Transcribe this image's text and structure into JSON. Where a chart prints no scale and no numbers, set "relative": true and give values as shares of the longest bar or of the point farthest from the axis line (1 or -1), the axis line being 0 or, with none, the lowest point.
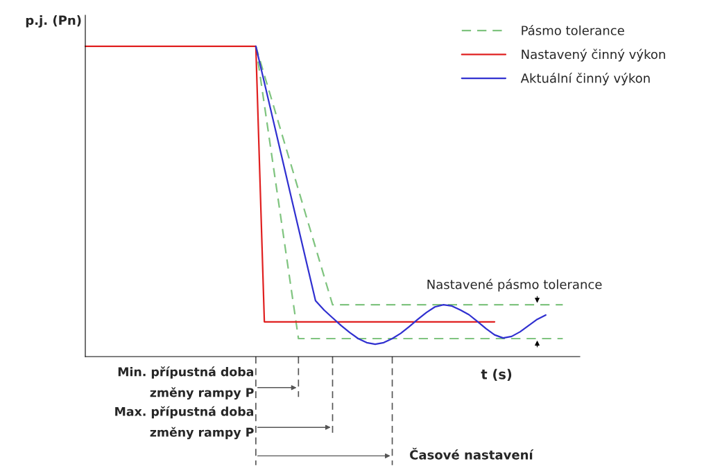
{
  "chart_data": {
    "type": "line",
    "relative": true,
    "xlabel": "t (s)",
    "ylabel": "p.j. (Pn)",
    "categories": [
      null,
      null,
      null,
      null,
      null,
      null,
      null,
      null,
      null,
      null,
      null,
      null,
      null,
      null,
      null,
      null,
      null,
      null,
      null,
      null,
      null,
      null,
      null,
      null,
      null,
      null,
      null,
      null,
      null,
      null,
      null,
      null,
      null,
      null,
      null,
      null,
      null,
      null,
      null,
      null,
      null,
      null,
      null,
      null,
      null,
      null,
      null,
      null,
      null,
      null,
      null,
      null,
      null,
      null,
      null,
      null,
      null,
      null,
      null
    ],
    "legend": "top right",
    "series": [
      {
        "name": "Pásmo tolerance",
        "color": "#7fc47f",
        "line_style": "dashed",
        "values": [
          null,
          null,
          null,
          null,
          null,
          null,
          null,
          null,
          null,
          null,
          null,
          null,
          null,
          null,
          null,
          null,
          null,
          null,
          null,
          null,
          1,
          0.907,
          0.815,
          0.722,
          0.63,
          0.537,
          0.444,
          0.352,
          0.259,
          0.167,
          0.167,
          0.167,
          0.167,
          0.167,
          0.167,
          0.167,
          0.167,
          0.167,
          0.167,
          0.167,
          0.167,
          0.167,
          0.167,
          0.167,
          0.167,
          0.167,
          0.167,
          0.167,
          0.167,
          0.167,
          0.167,
          0.167,
          0.167,
          0.167,
          0.167,
          0.167,
          0.167,
          null,
          null
        ]
      },
      {
        "color": "#7fc47f",
        "line_style": "dashed",
        "values": [
          null,
          null,
          null,
          null,
          null,
          null,
          null,
          null,
          null,
          null,
          null,
          null,
          null,
          null,
          null,
          null,
          null,
          null,
          null,
          null,
          1,
          0.812,
          0.623,
          0.435,
          0.246,
          0.058,
          0.058,
          0.058,
          0.058,
          0.058,
          0.058,
          0.058,
          0.058,
          0.058,
          0.058,
          0.058,
          0.058,
          0.058,
          0.058,
          0.058,
          0.058,
          0.058,
          0.058,
          0.058,
          0.058,
          0.058,
          0.058,
          0.058,
          0.058,
          0.058,
          0.058,
          0.058,
          0.058,
          0.058,
          0.058,
          0.058,
          0.058,
          null,
          null
        ]
      },
      {
        "name": "Nastavený činný výkon",
        "color": "#e02020",
        "line_style": "solid",
        "values": [
          1,
          1,
          1,
          1,
          1,
          1,
          1,
          1,
          1,
          1,
          1,
          1,
          1,
          1,
          1,
          1,
          1,
          1,
          1,
          1,
          1,
          0.112,
          0.112,
          0.112,
          0.112,
          0.112,
          0.112,
          0.112,
          0.112,
          0.112,
          0.112,
          0.112,
          0.112,
          0.112,
          0.112,
          0.112,
          0.112,
          0.112,
          0.112,
          0.112,
          0.112,
          0.112,
          0.112,
          0.112,
          0.112,
          0.112,
          0.112,
          0.112,
          0.112,
          null,
          null,
          null,
          null,
          null,
          null,
          null,
          null,
          null,
          null
        ]
      },
      {
        "name": "Aktuální činný výkon",
        "color": "#3030d0",
        "line_style": "solid",
        "values": [
          null,
          null,
          null,
          null,
          null,
          null,
          null,
          null,
          null,
          null,
          null,
          null,
          null,
          null,
          null,
          null,
          null,
          null,
          null,
          null,
          1,
          0.883,
          0.766,
          0.649,
          0.531,
          0.414,
          0.297,
          0.18,
          0.15,
          0.125,
          0.1,
          0.078,
          0.058,
          0.045,
          0.04,
          0.045,
          0.058,
          0.075,
          0.097,
          0.12,
          0.142,
          0.16,
          0.167,
          0.163,
          0.15,
          0.135,
          0.113,
          0.09,
          0.07,
          0.06,
          0.065,
          0.08,
          0.1,
          0.12,
          0.134,
          null,
          null,
          null,
          null
        ]
      }
    ],
    "annotations": [
      "Nastavené pásmo tolerance",
      "Min. přípustná doba\nzměny rampy P",
      "Max. přípustná doba\nzměny rampy P",
      "Časové nastavení"
    ]
  }
}
